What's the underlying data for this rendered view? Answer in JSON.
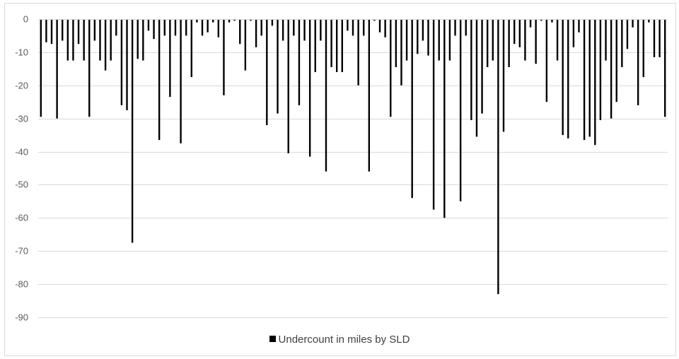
{
  "chart_data": {
    "type": "bar",
    "title": "",
    "xlabel": "",
    "ylabel": "",
    "ylim": [
      -90,
      0
    ],
    "yticks": [
      0,
      -10,
      -20,
      -30,
      -40,
      -50,
      -60,
      -70,
      -80,
      -90
    ],
    "grid": true,
    "legend_position": "bottom",
    "bar_color": "#000000",
    "grid_color": "#d9d9d9",
    "series": [
      {
        "name": "Undercount in miles by SLD",
        "values": [
          -29.5,
          -7,
          -7.5,
          -30,
          -6.5,
          -12.5,
          -12.5,
          -7.5,
          -12.5,
          -29.5,
          -6.5,
          -12.5,
          -15.5,
          -12.5,
          -5,
          -26,
          -27.5,
          -67.5,
          -12,
          -12.5,
          -3.5,
          -6,
          -36.5,
          -5,
          -23.5,
          -5,
          -37.5,
          -5,
          -17.5,
          -1,
          -5,
          -4,
          -1,
          -5.5,
          -23,
          -1,
          -0.5,
          -7.5,
          -15.5,
          -0.5,
          -8.5,
          -5,
          -32,
          -2,
          -28.5,
          -6.5,
          -40.5,
          -5,
          -26,
          -6.5,
          -41.5,
          -16,
          -6.5,
          -46,
          -14.5,
          -16,
          -16,
          -3.5,
          -5,
          -20,
          -5,
          -46,
          -0.5,
          -4,
          -5.5,
          -29.5,
          -14.5,
          -20,
          -12.5,
          -54,
          -10.5,
          -6.5,
          -11,
          -57.5,
          -12.5,
          -60,
          -12.5,
          -5,
          -55,
          -5,
          -30.5,
          -35.5,
          -28.5,
          -14.5,
          -12.5,
          -83,
          -34,
          -14.5,
          -7.5,
          -8.5,
          -12.5,
          -2.5,
          -13.5,
          -0.5,
          -25,
          -1,
          -12.5,
          -35,
          -36,
          -8.5,
          -4,
          -36.5,
          -35.5,
          -38,
          -30.5,
          -12.5,
          -30,
          -25,
          -14.5,
          -9,
          -2.5,
          -26,
          -17.5,
          -1,
          -11.5,
          -11.5,
          -29.5
        ]
      }
    ]
  }
}
